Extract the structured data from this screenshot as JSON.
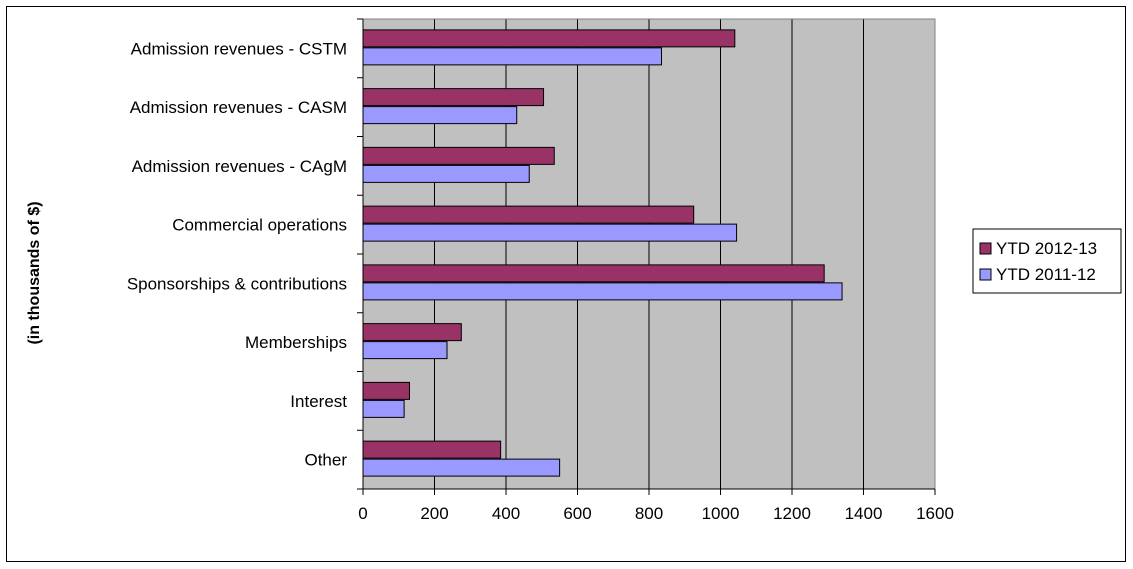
{
  "chart_data": {
    "type": "bar",
    "orientation": "horizontal",
    "title": "",
    "xlabel": "",
    "ylabel": "(in thousands of $)",
    "categories": [
      "Admission revenues - CSTM",
      "Admission revenues - CASM",
      "Admission revenues - CAgM",
      "Commercial operations",
      "Sponsorships & contributions",
      "Memberships",
      "Interest",
      "Other"
    ],
    "series": [
      {
        "name": "YTD 2012-13",
        "color": "#993366",
        "values": [
          1040,
          505,
          535,
          925,
          1290,
          275,
          130,
          385
        ]
      },
      {
        "name": "YTD 2011-12",
        "color": "#9999ff",
        "values": [
          835,
          430,
          465,
          1045,
          1340,
          235,
          115,
          550
        ]
      }
    ],
    "xlim": [
      0,
      1600
    ],
    "xticks": [
      "0",
      "200",
      "400",
      "600",
      "800",
      "1000",
      "1200",
      "1400",
      "1600"
    ],
    "grid": "vertical",
    "plot_background": "#c0c0c0",
    "legend": "right"
  }
}
